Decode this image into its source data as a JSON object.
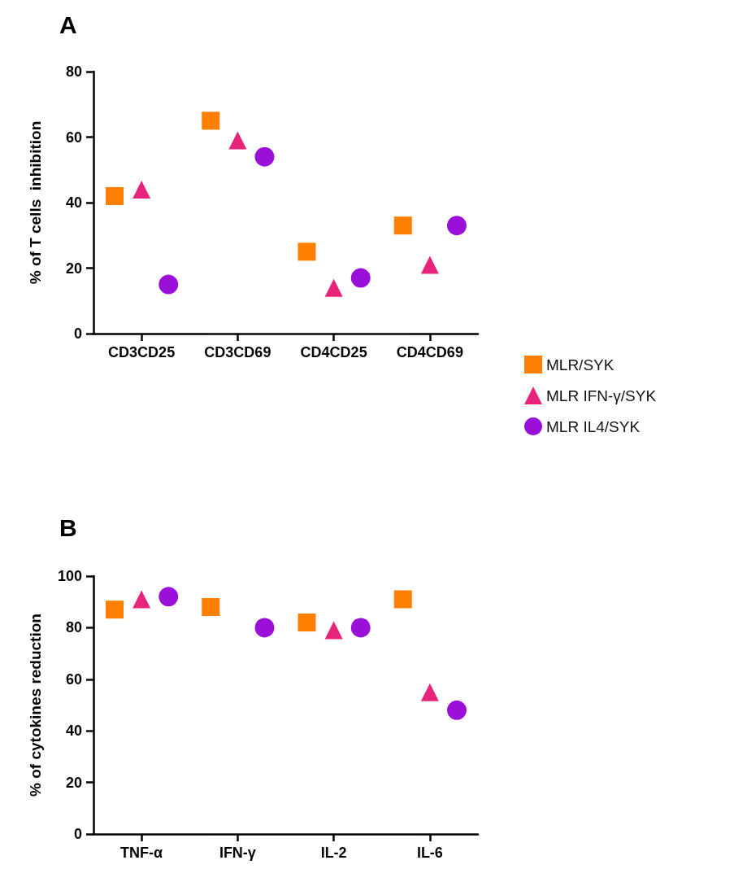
{
  "chart_data": [
    {
      "type": "scatter",
      "title": "A",
      "ylabel": "% of T cells  inhibition",
      "categories": [
        "CD3CD25",
        "CD3CD69",
        "CD4CD25",
        "CD4CD69"
      ],
      "ylim": [
        0,
        80
      ],
      "yticks": [
        0,
        20,
        40,
        60,
        80
      ],
      "legend": "right",
      "series": [
        {
          "name": "MLR/SYK",
          "color": "#ff7f00",
          "marker": "square",
          "values": [
            42,
            65,
            25,
            33
          ]
        },
        {
          "name": "MLR IFN-γ/SYK",
          "color": "#e8237a",
          "marker": "triangle",
          "values": [
            44,
            59,
            14,
            21
          ]
        },
        {
          "name": "MLR IL4/SYK",
          "color": "#9b10d8",
          "marker": "circle",
          "values": [
            15,
            54,
            17,
            33
          ]
        }
      ]
    },
    {
      "type": "scatter",
      "title": "B",
      "ylabel": "% of cytokines reduction",
      "categories": [
        "TNF-α",
        "IFN-γ",
        "IL-2",
        "IL-6"
      ],
      "ylim": [
        0,
        100
      ],
      "yticks": [
        0,
        20,
        40,
        60,
        80,
        100
      ],
      "series": [
        {
          "color": "#ff7f00",
          "marker": "square",
          "values": [
            87,
            88,
            82,
            91
          ]
        },
        {
          "color": "#e8237a",
          "marker": "triangle",
          "values": [
            91,
            null,
            79,
            55
          ]
        },
        {
          "color": "#9b10d8",
          "marker": "circle",
          "values": [
            92,
            80,
            80,
            48
          ]
        }
      ]
    }
  ]
}
